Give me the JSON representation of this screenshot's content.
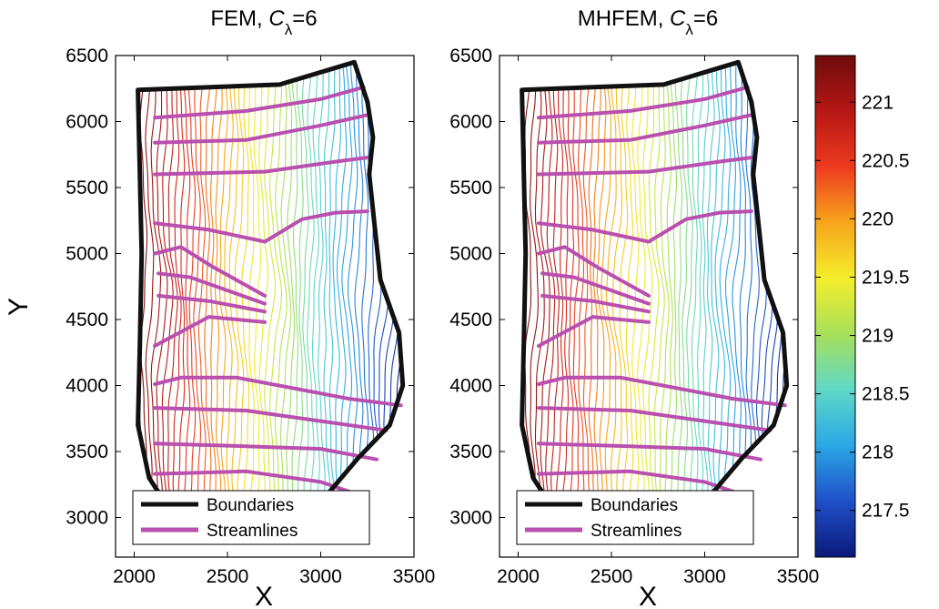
{
  "panels": [
    {
      "title": "FEM, ",
      "title_symbol": "C",
      "title_subscript": "λ",
      "title_suffix": "=6",
      "xlabel": "X",
      "ylabel": "Y",
      "show_ylabel": true
    },
    {
      "title": "MHFEM, ",
      "title_symbol": "C",
      "title_subscript": "λ",
      "title_suffix": "=6",
      "xlabel": "X",
      "ylabel": "",
      "show_ylabel": false
    }
  ],
  "legend": {
    "boundaries": "Boundaries",
    "streamlines": "Streamlines"
  },
  "colors": {
    "boundary": "#111111",
    "streamline": "#b94fae",
    "colormap": [
      "#0a1a7a",
      "#1f4fc7",
      "#2aa7e6",
      "#5fd8c8",
      "#a7e05a",
      "#f5ee2b",
      "#f7a51c",
      "#ee3a1f",
      "#b51714",
      "#6e0c0c"
    ]
  },
  "chart_data": {
    "type": "contour",
    "xlim": [
      1900,
      3500
    ],
    "ylim": [
      2700,
      6500
    ],
    "xticks": [
      2000,
      2500,
      3000,
      3500
    ],
    "yticks": [
      3000,
      3500,
      4000,
      4500,
      5000,
      5500,
      6000,
      6500
    ],
    "colorbar": {
      "range": [
        217.1,
        221.4
      ],
      "ticks": [
        217.5,
        218,
        218.5,
        219,
        219.5,
        220,
        220.5,
        221
      ]
    },
    "boundary": [
      [
        2020,
        6240
      ],
      [
        2780,
        6280
      ],
      [
        3180,
        6450
      ],
      [
        3250,
        6150
      ],
      [
        3280,
        5880
      ],
      [
        3260,
        5600
      ],
      [
        3290,
        5200
      ],
      [
        3320,
        4800
      ],
      [
        3420,
        4400
      ],
      [
        3440,
        4000
      ],
      [
        3370,
        3700
      ],
      [
        3200,
        3450
      ],
      [
        3050,
        3200
      ],
      [
        2930,
        2930
      ],
      [
        2250,
        2930
      ],
      [
        2080,
        3300
      ],
      [
        2020,
        3700
      ],
      [
        2030,
        4300
      ],
      [
        2040,
        5000
      ],
      [
        2020,
        6240
      ]
    ],
    "streamlines": [
      [
        [
          2110,
          6030
        ],
        [
          2600,
          6080
        ],
        [
          3000,
          6170
        ],
        [
          3230,
          6260
        ]
      ],
      [
        [
          2110,
          5840
        ],
        [
          2600,
          5860
        ],
        [
          3000,
          5970
        ],
        [
          3250,
          6050
        ]
      ],
      [
        [
          2110,
          5600
        ],
        [
          2700,
          5620
        ],
        [
          3100,
          5700
        ],
        [
          3270,
          5730
        ]
      ],
      [
        [
          2110,
          5230
        ],
        [
          2400,
          5180
        ],
        [
          2700,
          5090
        ],
        [
          2900,
          5260
        ],
        [
          3080,
          5310
        ],
        [
          3250,
          5320
        ]
      ],
      [
        [
          2110,
          5000
        ],
        [
          2250,
          5050
        ],
        [
          2420,
          4900
        ],
        [
          2700,
          4680
        ]
      ],
      [
        [
          2130,
          4850
        ],
        [
          2300,
          4820
        ],
        [
          2700,
          4620
        ]
      ],
      [
        [
          2130,
          4680
        ],
        [
          2400,
          4640
        ],
        [
          2700,
          4560
        ]
      ],
      [
        [
          2110,
          4300
        ],
        [
          2400,
          4520
        ],
        [
          2700,
          4480
        ]
      ],
      [
        [
          2110,
          4010
        ],
        [
          2250,
          4060
        ],
        [
          2550,
          4060
        ],
        [
          2850,
          3980
        ],
        [
          3150,
          3900
        ],
        [
          3430,
          3850
        ]
      ],
      [
        [
          2110,
          3830
        ],
        [
          2600,
          3810
        ],
        [
          3000,
          3730
        ],
        [
          3350,
          3660
        ]
      ],
      [
        [
          2110,
          3560
        ],
        [
          2600,
          3540
        ],
        [
          3000,
          3520
        ],
        [
          3300,
          3440
        ]
      ],
      [
        [
          2110,
          3330
        ],
        [
          2600,
          3350
        ],
        [
          3000,
          3270
        ],
        [
          3230,
          3160
        ]
      ]
    ],
    "head_field": {
      "x_west": 2020,
      "x_east": 3440,
      "value_west": 221.3,
      "value_east": 217.2,
      "num_levels": 50
    },
    "series": [
      {
        "name": "Boundaries",
        "type": "line"
      },
      {
        "name": "Streamlines",
        "type": "line"
      }
    ]
  }
}
